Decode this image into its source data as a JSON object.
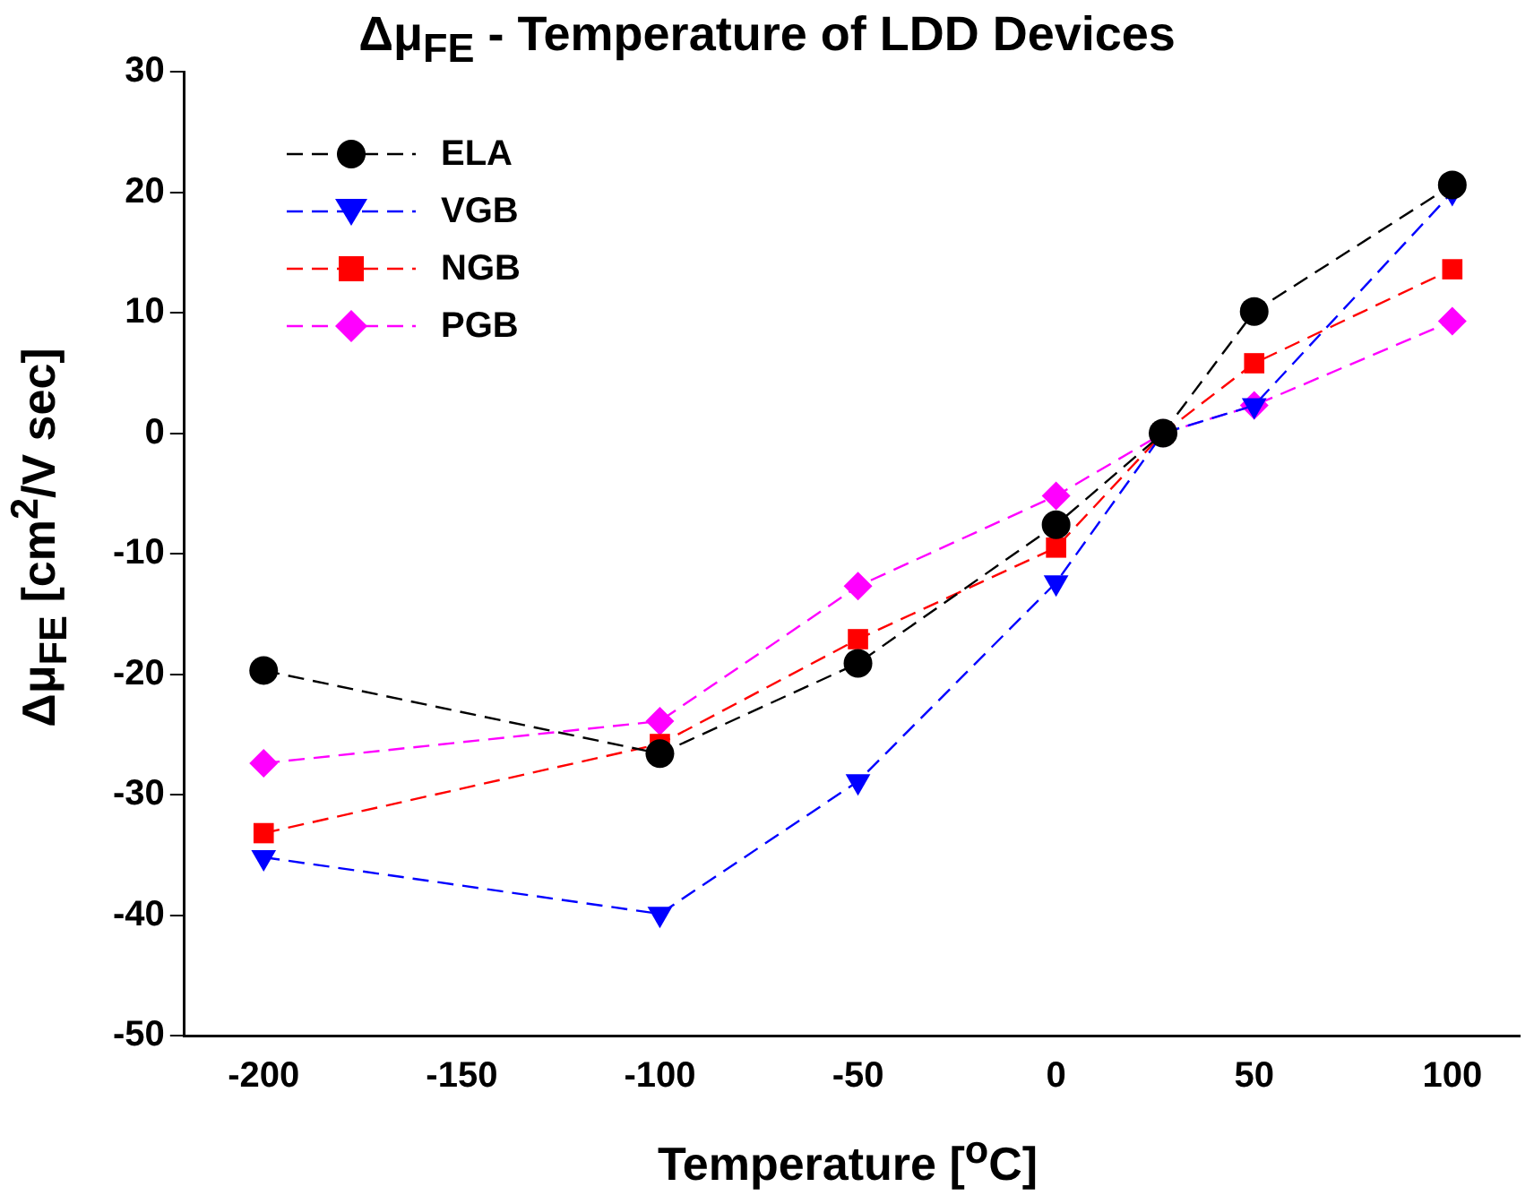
{
  "chart_data": {
    "type": "line",
    "title": "Δμ$_{FE}$ - Temperature of LDD Devices",
    "xlabel": "Temperature [$^{o}$C]",
    "ylabel": "Δμ$_{FE}$ [cm$^{2}$/V sec]",
    "x": [
      -200,
      -100,
      -50,
      0,
      27,
      50,
      100
    ],
    "series": [
      {
        "name": "ELA",
        "color": "#000000",
        "marker": "circle",
        "values": [
          -19.7,
          -26.6,
          -19.1,
          -7.6,
          0,
          10.1,
          20.6
        ]
      },
      {
        "name": "VGB",
        "color": "#0000ff",
        "marker": "triangle",
        "values": [
          -35.2,
          -39.9,
          -28.9,
          -12.4,
          0,
          2.3,
          20
        ]
      },
      {
        "name": "NGB",
        "color": "#ff0000",
        "marker": "square",
        "values": [
          -33.2,
          -25.8,
          -17.1,
          -9.5,
          0,
          5.8,
          13.6
        ]
      },
      {
        "name": "PGB",
        "color": "#ff00ff",
        "marker": "diamond",
        "values": [
          -27.4,
          -23.9,
          -12.7,
          -5.2,
          0,
          2.3,
          9.3
        ]
      }
    ],
    "xlim": [
      -220,
      117
    ],
    "xticks": [
      -200,
      -150,
      -100,
      -50,
      0,
      50,
      100
    ],
    "ylim": [
      -50,
      30
    ],
    "yticks": [
      -50,
      -40,
      -30,
      -20,
      -10,
      0,
      10,
      20,
      30
    ],
    "grid": false,
    "legend": "top left",
    "line_style": "dashed"
  }
}
